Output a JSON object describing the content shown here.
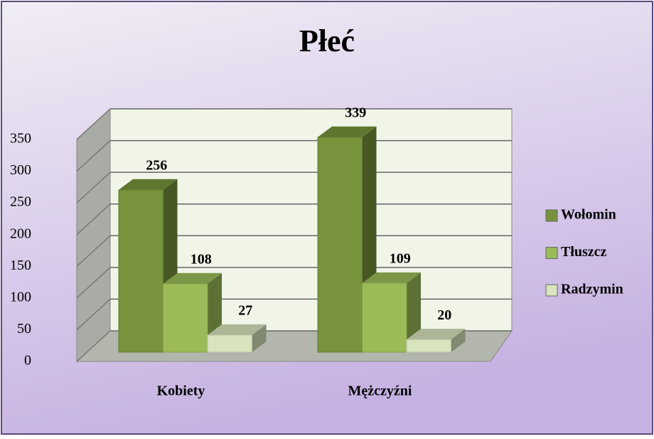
{
  "chart_data": {
    "type": "bar3d",
    "title": "Płeć",
    "categories": [
      "Kobiety",
      "Mężczyźni"
    ],
    "series": [
      {
        "name": "Wołomin",
        "color": "#77933c",
        "values": [
          256,
          339
        ]
      },
      {
        "name": "Tłuszcz",
        "color": "#9bbb59",
        "values": [
          108,
          109
        ]
      },
      {
        "name": "Radzymin",
        "color": "#d7e4bd",
        "values": [
          27,
          20
        ]
      }
    ],
    "ylim": [
      0,
      350
    ],
    "yticks": [
      0,
      50,
      100,
      150,
      200,
      250,
      300,
      350
    ],
    "grid": true,
    "legend": "right"
  }
}
